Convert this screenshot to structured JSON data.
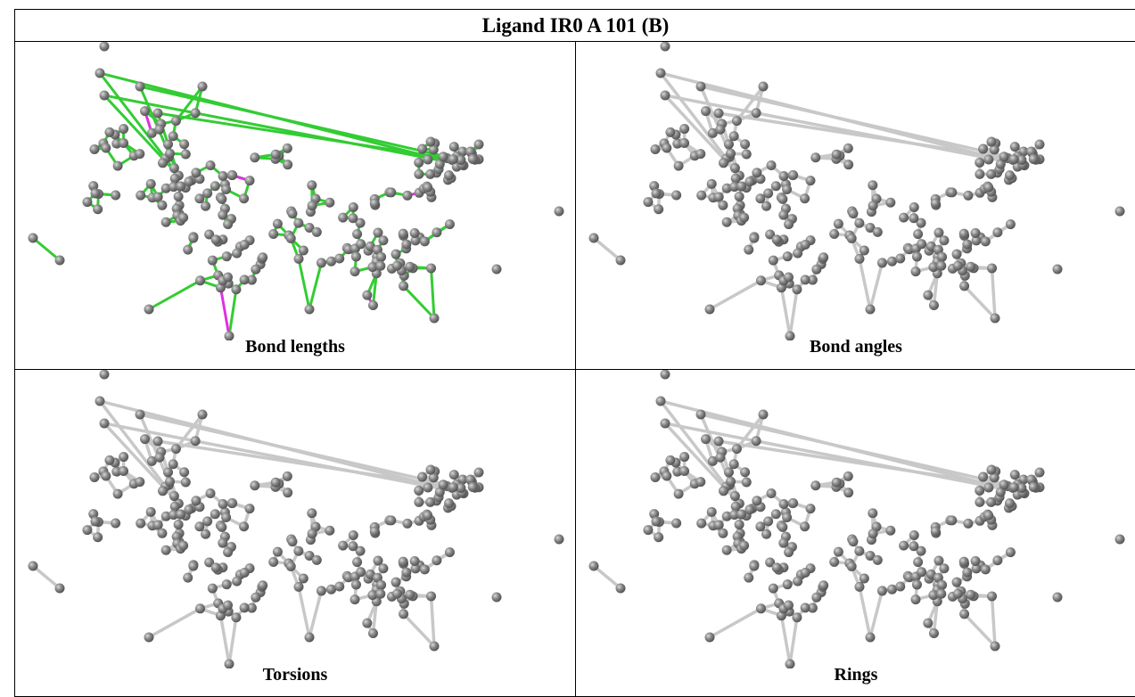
{
  "title": "Ligand IR0 A 101 (B)",
  "panels": [
    {
      "caption": "Bond lengths"
    },
    {
      "caption": "Bond angles"
    },
    {
      "caption": "Torsions"
    },
    {
      "caption": "Rings"
    }
  ]
}
